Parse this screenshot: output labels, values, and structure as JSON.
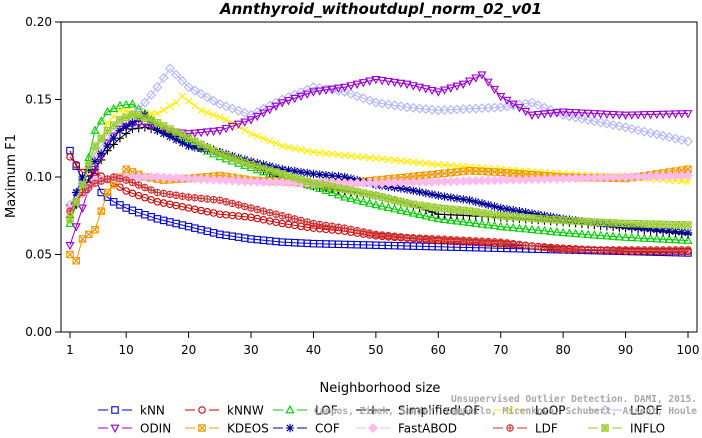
{
  "chart_data": {
    "type": "line",
    "title": "Annthyroid_withoutdupl_norm_02_v01",
    "xlabel": "Neighborhood size",
    "ylabel": "Maximum F1",
    "xlim": [
      1,
      100
    ],
    "ylim": [
      0,
      0.2
    ],
    "x_ticks": [
      1,
      10,
      20,
      30,
      40,
      50,
      60,
      70,
      80,
      90,
      100
    ],
    "y_ticks": [
      "0.00",
      "0.05",
      "0.10",
      "0.15",
      "0.20"
    ],
    "watermark": [
      "Campos, Zimek, Sander, Campello, Micenkova, Schubert, Assent, Houle",
      "Unsupervised Outlier Detection. DAMI, 2015."
    ],
    "legend_position": "bottom",
    "series": [
      {
        "name": "kNN",
        "color": "#0000cc",
        "marker": "square",
        "points": [
          [
            1,
            0.117
          ],
          [
            3,
            0.097
          ],
          [
            5,
            0.1
          ],
          [
            6,
            0.09
          ],
          [
            8,
            0.084
          ],
          [
            10,
            0.08
          ],
          [
            12,
            0.077
          ],
          [
            15,
            0.073
          ],
          [
            20,
            0.068
          ],
          [
            25,
            0.063
          ],
          [
            30,
            0.06
          ],
          [
            35,
            0.058
          ],
          [
            40,
            0.057
          ],
          [
            50,
            0.056
          ],
          [
            60,
            0.055
          ],
          [
            70,
            0.054
          ],
          [
            80,
            0.053
          ],
          [
            90,
            0.052
          ],
          [
            100,
            0.051
          ]
        ]
      },
      {
        "name": "kNNW",
        "color": "#cc0000",
        "marker": "circle",
        "points": [
          [
            1,
            0.113
          ],
          [
            3,
            0.103
          ],
          [
            5,
            0.103
          ],
          [
            8,
            0.096
          ],
          [
            10,
            0.091
          ],
          [
            12,
            0.088
          ],
          [
            15,
            0.084
          ],
          [
            20,
            0.08
          ],
          [
            25,
            0.076
          ],
          [
            30,
            0.074
          ],
          [
            35,
            0.07
          ],
          [
            40,
            0.067
          ],
          [
            45,
            0.065
          ],
          [
            50,
            0.062
          ],
          [
            60,
            0.059
          ],
          [
            70,
            0.057
          ],
          [
            80,
            0.054
          ],
          [
            90,
            0.052
          ],
          [
            100,
            0.052
          ]
        ]
      },
      {
        "name": "LOF",
        "color": "#00cc00",
        "marker": "triangle-up",
        "points": [
          [
            1,
            0.07
          ],
          [
            3,
            0.095
          ],
          [
            5,
            0.13
          ],
          [
            7,
            0.142
          ],
          [
            9,
            0.146
          ],
          [
            11,
            0.147
          ],
          [
            13,
            0.141
          ],
          [
            15,
            0.133
          ],
          [
            20,
            0.122
          ],
          [
            25,
            0.113
          ],
          [
            30,
            0.106
          ],
          [
            35,
            0.099
          ],
          [
            40,
            0.094
          ],
          [
            45,
            0.087
          ],
          [
            50,
            0.082
          ],
          [
            60,
            0.073
          ],
          [
            70,
            0.068
          ],
          [
            80,
            0.064
          ],
          [
            90,
            0.061
          ],
          [
            100,
            0.059
          ]
        ]
      },
      {
        "name": "SimplifiedLOF",
        "color": "#000000",
        "marker": "plus",
        "points": [
          [
            1,
            0.074
          ],
          [
            3,
            0.09
          ],
          [
            5,
            0.105
          ],
          [
            7,
            0.117
          ],
          [
            9,
            0.125
          ],
          [
            11,
            0.131
          ],
          [
            13,
            0.132
          ],
          [
            15,
            0.13
          ],
          [
            20,
            0.124
          ],
          [
            25,
            0.116
          ],
          [
            30,
            0.108
          ],
          [
            35,
            0.099
          ],
          [
            40,
            0.094
          ],
          [
            45,
            0.091
          ],
          [
            50,
            0.088
          ],
          [
            55,
            0.083
          ],
          [
            60,
            0.076
          ],
          [
            70,
            0.074
          ],
          [
            80,
            0.071
          ],
          [
            90,
            0.067
          ],
          [
            100,
            0.063
          ]
        ]
      },
      {
        "name": "LoOP",
        "color": "#ffee00",
        "marker": "x",
        "points": [
          [
            1,
            0.078
          ],
          [
            3,
            0.095
          ],
          [
            5,
            0.115
          ],
          [
            7,
            0.135
          ],
          [
            9,
            0.143
          ],
          [
            11,
            0.142
          ],
          [
            13,
            0.141
          ],
          [
            15,
            0.141
          ],
          [
            18,
            0.148
          ],
          [
            19,
            0.152
          ],
          [
            22,
            0.143
          ],
          [
            26,
            0.137
          ],
          [
            30,
            0.128
          ],
          [
            35,
            0.12
          ],
          [
            40,
            0.116
          ],
          [
            45,
            0.114
          ],
          [
            50,
            0.112
          ],
          [
            60,
            0.108
          ],
          [
            70,
            0.105
          ],
          [
            80,
            0.102
          ],
          [
            90,
            0.1
          ],
          [
            100,
            0.097
          ]
        ]
      },
      {
        "name": "LDOF",
        "color": "#b4b4ff",
        "marker": "diamond",
        "points": [
          [
            1,
            0.082
          ],
          [
            3,
            0.098
          ],
          [
            5,
            0.115
          ],
          [
            7,
            0.125
          ],
          [
            9,
            0.132
          ],
          [
            11,
            0.14
          ],
          [
            13,
            0.148
          ],
          [
            15,
            0.158
          ],
          [
            17,
            0.17
          ],
          [
            20,
            0.158
          ],
          [
            25,
            0.147
          ],
          [
            30,
            0.14
          ],
          [
            35,
            0.15
          ],
          [
            40,
            0.158
          ],
          [
            45,
            0.155
          ],
          [
            50,
            0.148
          ],
          [
            55,
            0.145
          ],
          [
            60,
            0.143
          ],
          [
            70,
            0.145
          ],
          [
            75,
            0.148
          ],
          [
            80,
            0.14
          ],
          [
            90,
            0.132
          ],
          [
            100,
            0.123
          ]
        ]
      },
      {
        "name": "ODIN",
        "color": "#9900cc",
        "marker": "triangle-down",
        "points": [
          [
            1,
            0.056
          ],
          [
            3,
            0.08
          ],
          [
            5,
            0.105
          ],
          [
            7,
            0.122
          ],
          [
            9,
            0.131
          ],
          [
            11,
            0.134
          ],
          [
            13,
            0.134
          ],
          [
            16,
            0.13
          ],
          [
            20,
            0.128
          ],
          [
            25,
            0.13
          ],
          [
            30,
            0.137
          ],
          [
            35,
            0.148
          ],
          [
            40,
            0.155
          ],
          [
            45,
            0.158
          ],
          [
            50,
            0.163
          ],
          [
            55,
            0.16
          ],
          [
            60,
            0.155
          ],
          [
            64,
            0.16
          ],
          [
            67,
            0.166
          ],
          [
            70,
            0.152
          ],
          [
            75,
            0.14
          ],
          [
            80,
            0.142
          ],
          [
            90,
            0.14
          ],
          [
            100,
            0.141
          ]
        ]
      },
      {
        "name": "KDEOS",
        "color": "#ee9900",
        "marker": "square-x",
        "points": [
          [
            1,
            0.05
          ],
          [
            2,
            0.046
          ],
          [
            3,
            0.06
          ],
          [
            5,
            0.066
          ],
          [
            7,
            0.09
          ],
          [
            10,
            0.105
          ],
          [
            13,
            0.1
          ],
          [
            16,
            0.098
          ],
          [
            20,
            0.099
          ],
          [
            25,
            0.101
          ],
          [
            30,
            0.098
          ],
          [
            35,
            0.097
          ],
          [
            40,
            0.096
          ],
          [
            45,
            0.096
          ],
          [
            50,
            0.098
          ],
          [
            55,
            0.1
          ],
          [
            60,
            0.102
          ],
          [
            65,
            0.104
          ],
          [
            70,
            0.103
          ],
          [
            80,
            0.1
          ],
          [
            90,
            0.099
          ],
          [
            100,
            0.105
          ]
        ]
      },
      {
        "name": "COF",
        "color": "#000099",
        "marker": "asterisk",
        "points": [
          [
            1,
            0.08
          ],
          [
            3,
            0.1
          ],
          [
            5,
            0.11
          ],
          [
            7,
            0.12
          ],
          [
            9,
            0.13
          ],
          [
            11,
            0.135
          ],
          [
            13,
            0.14
          ],
          [
            15,
            0.13
          ],
          [
            20,
            0.12
          ],
          [
            25,
            0.116
          ],
          [
            30,
            0.11
          ],
          [
            35,
            0.105
          ],
          [
            40,
            0.102
          ],
          [
            45,
            0.1
          ],
          [
            50,
            0.095
          ],
          [
            55,
            0.092
          ],
          [
            60,
            0.088
          ],
          [
            65,
            0.085
          ],
          [
            70,
            0.08
          ],
          [
            80,
            0.073
          ],
          [
            90,
            0.068
          ],
          [
            100,
            0.064
          ]
        ]
      },
      {
        "name": "FastABOD",
        "color": "#ffbbee",
        "marker": "diamond-filled",
        "points": [
          [
            1,
            0.08
          ],
          [
            5,
            0.098
          ],
          [
            10,
            0.1
          ],
          [
            15,
            0.1
          ],
          [
            20,
            0.099
          ],
          [
            30,
            0.097
          ],
          [
            40,
            0.096
          ],
          [
            50,
            0.096
          ],
          [
            60,
            0.097
          ],
          [
            70,
            0.098
          ],
          [
            80,
            0.099
          ],
          [
            90,
            0.1
          ],
          [
            100,
            0.101
          ]
        ]
      },
      {
        "name": "LDF",
        "color": "#cc3333",
        "marker": "circle-plus",
        "points": [
          [
            1,
            0.078
          ],
          [
            3,
            0.09
          ],
          [
            5,
            0.096
          ],
          [
            8,
            0.1
          ],
          [
            10,
            0.098
          ],
          [
            15,
            0.09
          ],
          [
            20,
            0.087
          ],
          [
            25,
            0.085
          ],
          [
            30,
            0.08
          ],
          [
            35,
            0.075
          ],
          [
            40,
            0.07
          ],
          [
            45,
            0.067
          ],
          [
            50,
            0.063
          ],
          [
            55,
            0.061
          ],
          [
            60,
            0.06
          ],
          [
            70,
            0.058
          ],
          [
            80,
            0.053
          ],
          [
            90,
            0.053
          ],
          [
            100,
            0.053
          ]
        ]
      },
      {
        "name": "INFLO",
        "color": "#99cc33",
        "marker": "square-star",
        "points": [
          [
            1,
            0.073
          ],
          [
            3,
            0.095
          ],
          [
            5,
            0.12
          ],
          [
            7,
            0.13
          ],
          [
            9,
            0.137
          ],
          [
            11,
            0.14
          ],
          [
            13,
            0.138
          ],
          [
            15,
            0.135
          ],
          [
            20,
            0.125
          ],
          [
            25,
            0.115
          ],
          [
            30,
            0.108
          ],
          [
            35,
            0.102
          ],
          [
            40,
            0.096
          ],
          [
            45,
            0.092
          ],
          [
            50,
            0.088
          ],
          [
            55,
            0.083
          ],
          [
            60,
            0.08
          ],
          [
            65,
            0.078
          ],
          [
            70,
            0.075
          ],
          [
            80,
            0.072
          ],
          [
            90,
            0.07
          ],
          [
            100,
            0.069
          ]
        ]
      }
    ]
  }
}
